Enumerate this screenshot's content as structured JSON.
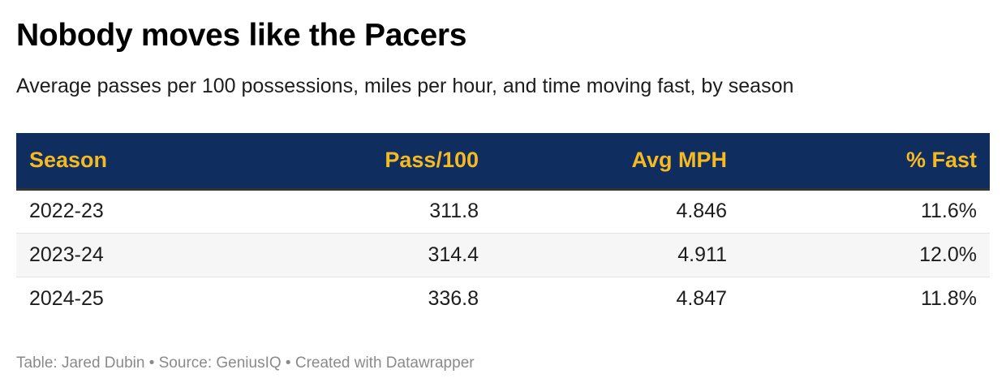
{
  "header": {
    "title": "Nobody moves like the Pacers",
    "subtitle": "Average passes per 100 possessions, miles per hour, and time moving fast, by season"
  },
  "footer": {
    "text": "Table: Jared Dubin • Source: GeniusIQ • Created with Datawrapper"
  },
  "colors": {
    "header_background": "#0f2d5e",
    "header_text": "#f5b921",
    "stripe_row": "#f6f6f6"
  },
  "chart_data": {
    "type": "table",
    "title": "Nobody moves like the Pacers",
    "subtitle": "Average passes per 100 possessions, miles per hour, and time moving fast, by season",
    "columns": [
      "Season",
      "Pass/100",
      "Avg MPH",
      "% Fast"
    ],
    "rows": [
      [
        "2022-23",
        "311.8",
        "4.846",
        "11.6%"
      ],
      [
        "2023-24",
        "314.4",
        "4.911",
        "12.0%"
      ],
      [
        "2024-25",
        "336.8",
        "4.847",
        "11.8%"
      ]
    ],
    "striped_rows": [
      1
    ]
  }
}
